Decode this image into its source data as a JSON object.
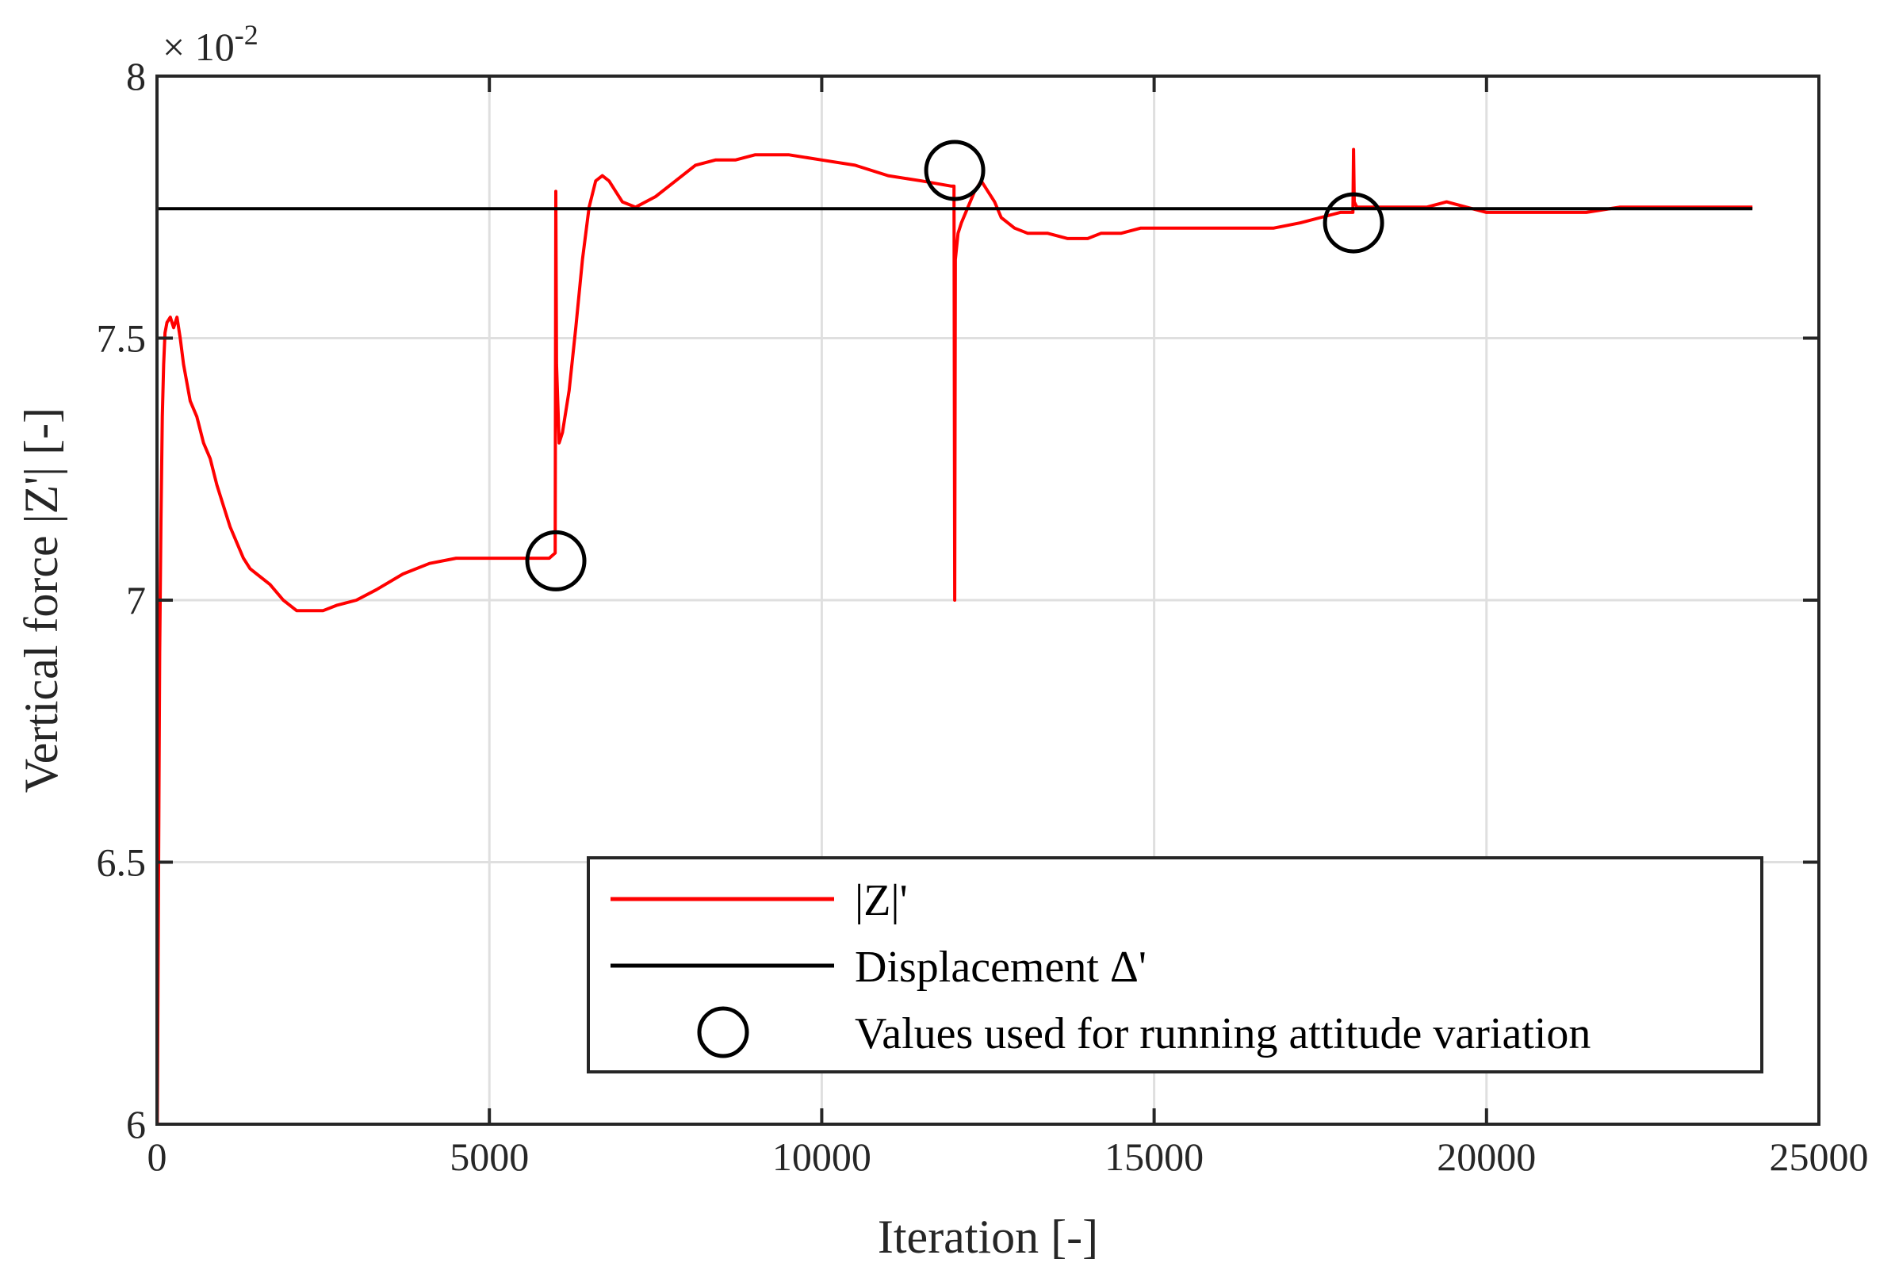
{
  "chart_data": {
    "type": "line",
    "xlabel": "Iteration [-]",
    "ylabel": "Vertical force |Z'| [-]",
    "xlim": [
      0,
      25000
    ],
    "ylim": [
      0.06,
      0.08
    ],
    "y_multiplier": {
      "base": "× 10",
      "exponent": "-2"
    },
    "grid": true,
    "x_ticks": [
      0,
      5000,
      10000,
      15000,
      20000,
      25000
    ],
    "x_tick_labels": [
      "0",
      "5000",
      "10000",
      "15000",
      "20000",
      "25000"
    ],
    "y_ticks": [
      0.06,
      0.065,
      0.07,
      0.075,
      0.08
    ],
    "y_tick_labels": [
      "6",
      "6.5",
      "7",
      "7.5",
      "8"
    ],
    "legend_position": "bottom-right",
    "series": [
      {
        "name": "|Z|'",
        "color": "#ff0000",
        "style": "line",
        "x": [
          0,
          5,
          20,
          40,
          60,
          80,
          100,
          120,
          150,
          200,
          250,
          300,
          350,
          400,
          500,
          600,
          700,
          800,
          900,
          1000,
          1100,
          1200,
          1300,
          1400,
          1500,
          1700,
          1900,
          2100,
          2300,
          2500,
          2700,
          3000,
          3300,
          3700,
          4100,
          4500,
          4800,
          5200,
          5600,
          5900,
          5990,
          6000,
          6010,
          6050,
          6100,
          6200,
          6300,
          6400,
          6500,
          6600,
          6700,
          6800,
          6900,
          7000,
          7200,
          7500,
          7800,
          8100,
          8400,
          8700,
          9000,
          9500,
          10000,
          10500,
          11000,
          11500,
          11950,
          11990,
          12000,
          12010,
          12050,
          12100,
          12200,
          12300,
          12400,
          12500,
          12600,
          12700,
          12900,
          13100,
          13400,
          13700,
          14000,
          14200,
          14500,
          14800,
          15200,
          15600,
          16000,
          16400,
          16800,
          17200,
          17500,
          17800,
          17960,
          17990,
          18000,
          18010,
          18050,
          18200,
          18500,
          18800,
          19100,
          19400,
          19700,
          20000,
          20300,
          20600,
          21000,
          21500,
          22000,
          22500,
          23000,
          23500,
          24000
        ],
        "values": [
          0.06,
          0.06,
          0.064,
          0.069,
          0.0715,
          0.0735,
          0.0745,
          0.0751,
          0.0753,
          0.0754,
          0.0752,
          0.0754,
          0.075,
          0.0745,
          0.0738,
          0.0735,
          0.073,
          0.0727,
          0.0722,
          0.0718,
          0.0714,
          0.0711,
          0.0708,
          0.0706,
          0.0705,
          0.0703,
          0.07,
          0.0698,
          0.0698,
          0.0698,
          0.0699,
          0.07,
          0.0702,
          0.0705,
          0.0707,
          0.0708,
          0.0708,
          0.0708,
          0.0708,
          0.0708,
          0.0709,
          0.0778,
          0.0745,
          0.073,
          0.0732,
          0.074,
          0.0752,
          0.0765,
          0.0775,
          0.078,
          0.0781,
          0.078,
          0.0778,
          0.0776,
          0.0775,
          0.0777,
          0.078,
          0.0783,
          0.0784,
          0.0784,
          0.0785,
          0.0785,
          0.0784,
          0.0783,
          0.0781,
          0.078,
          0.0779,
          0.0779,
          0.07,
          0.0765,
          0.077,
          0.0772,
          0.0775,
          0.0778,
          0.078,
          0.0778,
          0.0776,
          0.0773,
          0.0771,
          0.077,
          0.077,
          0.0769,
          0.0769,
          0.077,
          0.077,
          0.0771,
          0.0771,
          0.0771,
          0.0771,
          0.0771,
          0.0771,
          0.0772,
          0.0773,
          0.0774,
          0.0774,
          0.0774,
          0.0786,
          0.0776,
          0.0775,
          0.0775,
          0.0775,
          0.0775,
          0.0775,
          0.0776,
          0.0775,
          0.0774,
          0.0774,
          0.0774,
          0.0774,
          0.0774,
          0.0775,
          0.0775,
          0.0775,
          0.0775,
          0.0775
        ]
      },
      {
        "name": "Displacement Δ'",
        "color": "#000000",
        "style": "line",
        "x": [
          0,
          24000
        ],
        "values": [
          0.07747,
          0.07747
        ]
      },
      {
        "name": "Values used for running attitude variation",
        "color": "#000000",
        "style": "marker-circle",
        "x": [
          6000,
          12000,
          18000
        ],
        "values": [
          0.07075,
          0.0782,
          0.0772
        ]
      }
    ]
  }
}
